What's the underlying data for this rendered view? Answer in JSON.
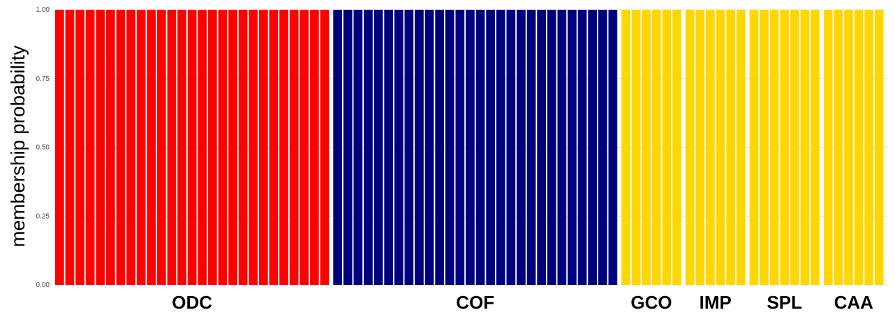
{
  "chart_data": {
    "type": "bar",
    "stacked": true,
    "ylabel": "membership probability",
    "ylim": [
      0,
      1
    ],
    "yticks": [
      "0.00",
      "0.25",
      "0.50",
      "0.75",
      "1.00"
    ],
    "grid": true,
    "legend": "none",
    "colors": {
      "cluster_1": "#ff0000",
      "cluster_2": "#00007f",
      "cluster_3": "#ffd700"
    },
    "groups": [
      {
        "label": "ODC",
        "n": 27,
        "color": "#ff0000",
        "value": 1.0
      },
      {
        "label": "COF",
        "n": 28,
        "color": "#00007f",
        "value": 1.0
      },
      {
        "label": "GCO",
        "n": 6,
        "color": "#ffd700",
        "value": 1.0
      },
      {
        "label": "IMP",
        "n": 6,
        "color": "#ffd700",
        "value": 1.0
      },
      {
        "label": "SPL",
        "n": 7,
        "color": "#ffd700",
        "value": 1.0
      },
      {
        "label": "CAA",
        "n": 6,
        "color": "#ffd700",
        "value": 1.0
      }
    ]
  }
}
